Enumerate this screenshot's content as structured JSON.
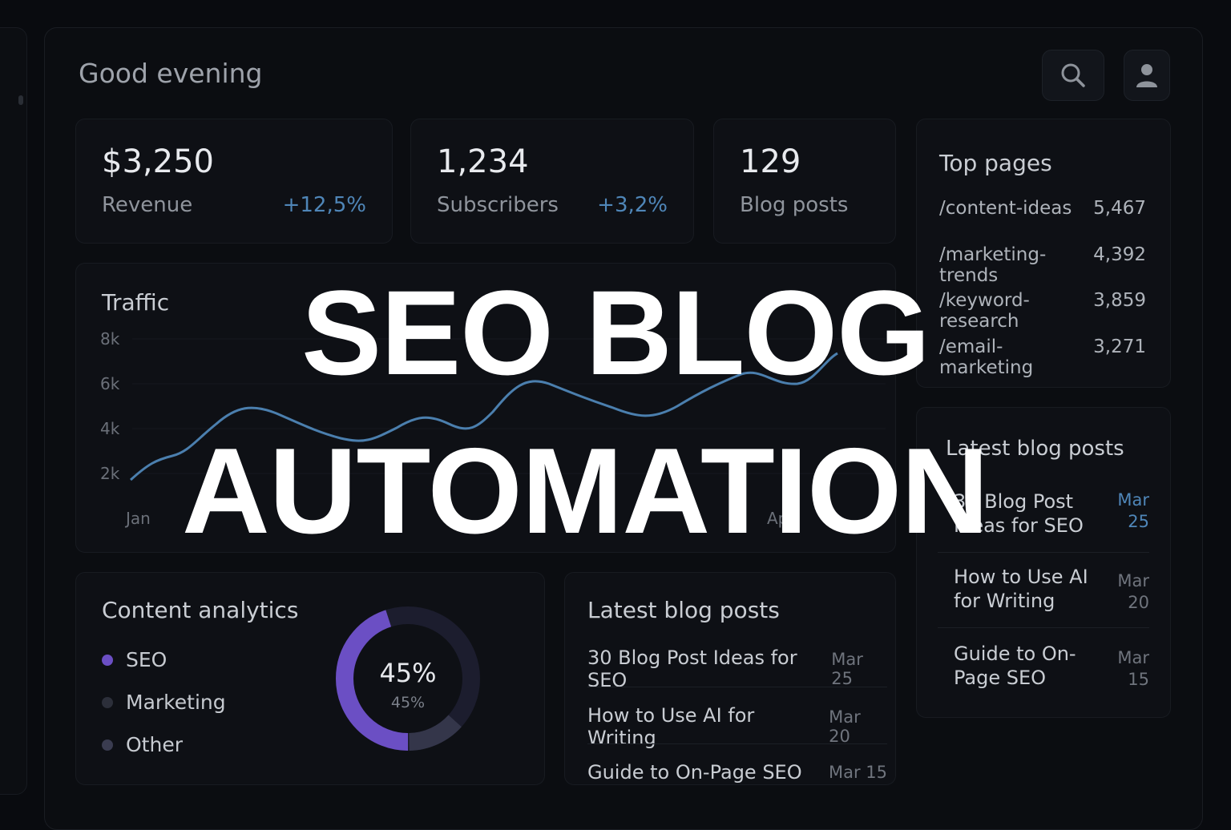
{
  "greeting": "Good evening",
  "header": {
    "search_icon": "search-icon",
    "profile_icon": "user-icon"
  },
  "stats": [
    {
      "value": "$3,250",
      "label": "Revenue",
      "delta": "+12,5%"
    },
    {
      "value": "1,234",
      "label": "Subscribers",
      "delta": "+3,2%"
    },
    {
      "value": "129",
      "label": "Blog posts"
    }
  ],
  "top_pages": {
    "title": "Top pages",
    "rows": [
      {
        "path": "/content-ideas",
        "count": "5,467"
      },
      {
        "path": "/marketing-trends",
        "count": "4,392"
      },
      {
        "path": "/keyword-research",
        "count": "3,859"
      },
      {
        "path": "/email-marketing",
        "count": "3,271"
      }
    ]
  },
  "traffic": {
    "title": "Traffic",
    "y_ticks": [
      "8k",
      "6k",
      "4k",
      "2k"
    ],
    "x_ticks": [
      "Jan",
      "Apr"
    ],
    "line_color": "#4b7fae"
  },
  "content_analytics": {
    "title": "Content analytics",
    "legend": [
      {
        "label": "SEO",
        "color": "#6b4fc4"
      },
      {
        "label": "Marketing",
        "color": "#2c2f3a"
      },
      {
        "label": "Other",
        "color": "#3a3c50"
      }
    ],
    "donut_value": "45%",
    "donut_sub": "45%",
    "seo_fraction": 0.45
  },
  "latest_posts_main": {
    "title": "Latest blog posts",
    "posts": [
      {
        "title": "30 Blog Post Ideas for SEO",
        "date": "Mar 25"
      },
      {
        "title": "How to Use AI for Writing",
        "date": "Mar 20"
      },
      {
        "title": "Guide to On-Page SEO",
        "date": "Mar 15"
      }
    ]
  },
  "latest_posts_side": {
    "title": "Latest blog posts",
    "posts": [
      {
        "title": "30 Blog Post Ideas for SEO",
        "date": "Mar 25"
      },
      {
        "title": "How to Use AI for Writing",
        "date": "Mar 20"
      },
      {
        "title": "Guide to On-Page SEO",
        "date": "Mar 15"
      }
    ]
  },
  "overlay": {
    "line1": "SEO BLOG",
    "line2": "AUTOMATION"
  }
}
